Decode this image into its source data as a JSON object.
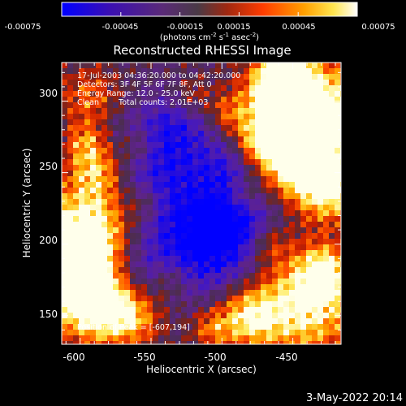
{
  "colorbar": {
    "tick_labels": [
      "-0.00075",
      "-0.00045",
      "-0.00015",
      "0.00015",
      "0.00045",
      "0.00075"
    ],
    "tick_values": [
      -0.00075,
      -0.00045,
      -0.00015,
      0.00015,
      0.00045,
      0.00075
    ],
    "range": [
      -0.00075,
      0.00075
    ],
    "units_prefix": "(photons cm",
    "units_exp1": "-2",
    "units_mid": " s",
    "units_exp2": "-1",
    "units_mid2": " asec",
    "units_exp3": "-2",
    "units_suffix": ")",
    "colormap": [
      "#0000ff",
      "#5a0f8c",
      "#4a2a5a",
      "#7a3a20",
      "#c81e00",
      "#ff5a00",
      "#ffb400",
      "#ffff96",
      "#ffffff"
    ]
  },
  "title": "Reconstructed RHESSI Image",
  "annotations": {
    "time_range": "17-Jul-2003 04:36:20.000 to 04:42:20.000",
    "detectors": "Detectors: 3F 4F 5F 6F 7F 8F, Att 0",
    "energy_range": "Energy Range: 12.0 - 25.0 keV",
    "method": "Clean",
    "total_counts": "Total counts: 2.01E+03",
    "peak_position": "Position of Peak = [-607,194]"
  },
  "x_axis": {
    "label": "Heliocentric X (arcsec)",
    "tick_labels": [
      "-600",
      "-550",
      "-500",
      "-450"
    ],
    "tick_values": [
      -600,
      -550,
      -500,
      -450
    ],
    "range": [
      -613,
      -416
    ]
  },
  "y_axis": {
    "label": "Heliocentric Y (arcsec)",
    "tick_labels": [
      "300",
      "250",
      "200",
      "150"
    ],
    "tick_values": [
      300,
      250,
      200,
      150
    ],
    "range": [
      130,
      327
    ]
  },
  "footer_date": "3-May-2022 20:14"
}
